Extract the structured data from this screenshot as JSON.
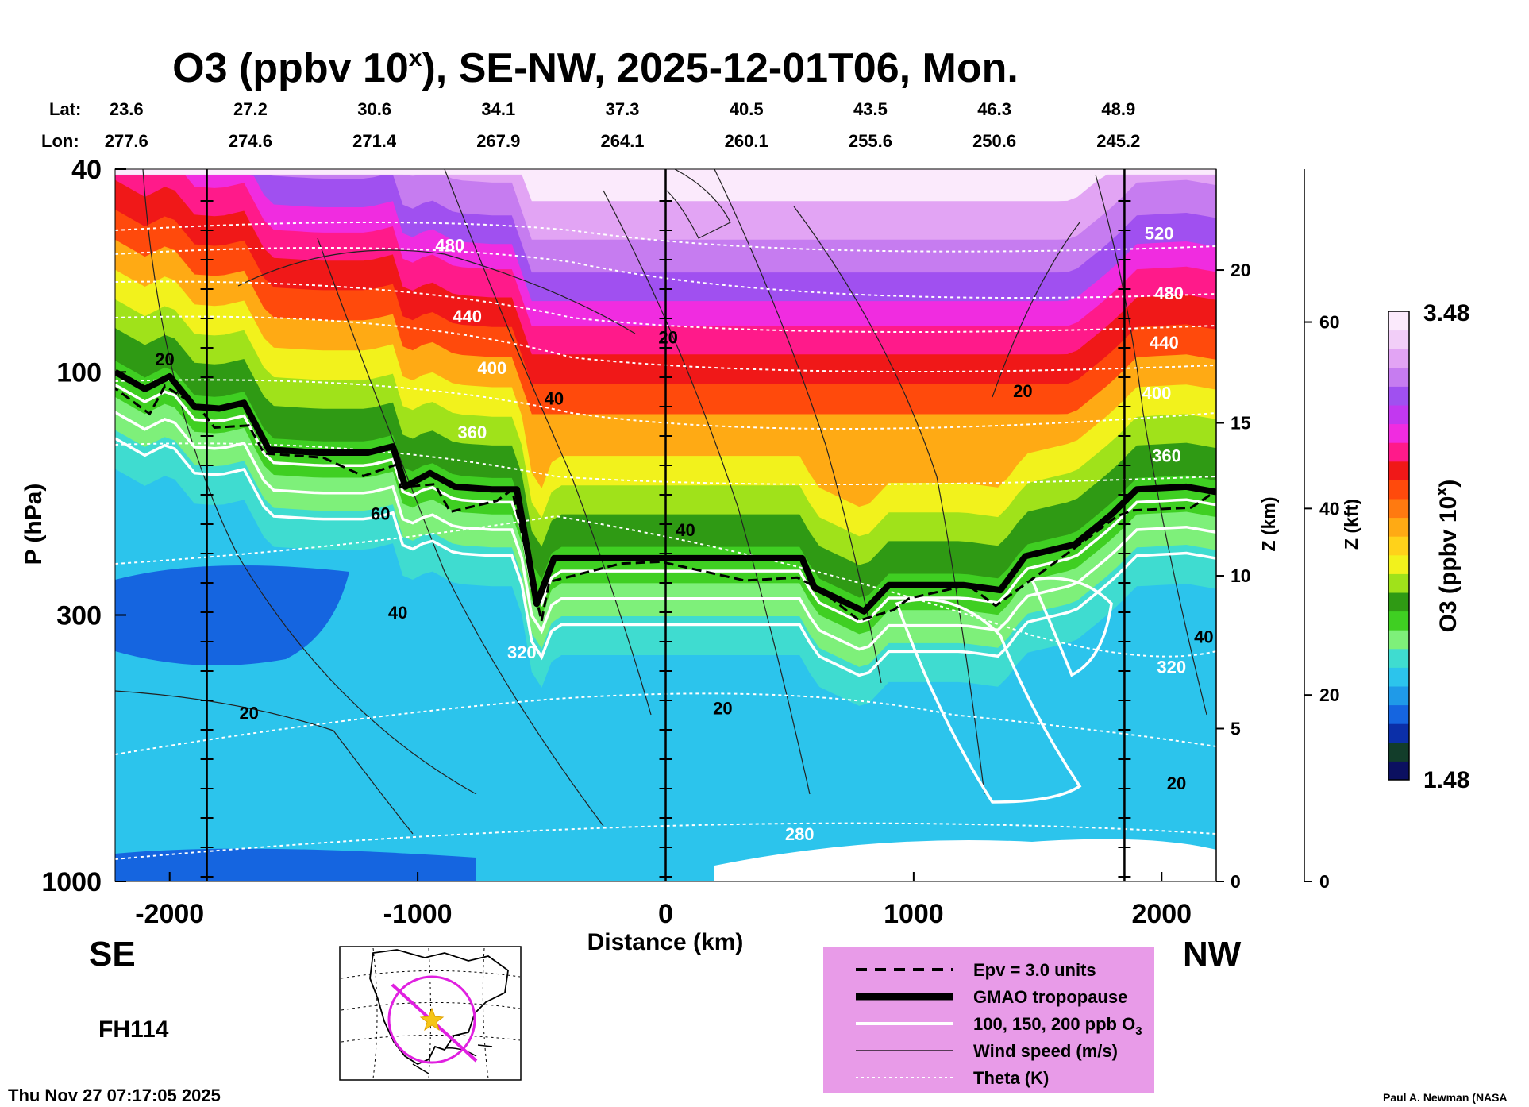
{
  "chart_data": {
    "type": "cross-section",
    "title_main": "O3 (ppbv 10",
    "title_sup": "x",
    "title_rest": "), SE-NW, 2025-12-01T06, Mon.",
    "lat_label": "Lat:",
    "lon_label": "Lon:",
    "stations": [
      {
        "distance_km": -2200,
        "lat": "23.6",
        "lon": "277.6"
      },
      {
        "distance_km": -1700,
        "lat": "27.2",
        "lon": "274.6"
      },
      {
        "distance_km": -1200,
        "lat": "30.6",
        "lon": "271.4"
      },
      {
        "distance_km": -700,
        "lat": "34.1",
        "lon": "267.9"
      },
      {
        "distance_km": -200,
        "lat": "37.3",
        "lon": "264.1"
      },
      {
        "distance_km": 300,
        "lat": "40.5",
        "lon": "260.1"
      },
      {
        "distance_km": 800,
        "lat": "43.5",
        "lon": "255.6"
      },
      {
        "distance_km": 1300,
        "lat": "46.3",
        "lon": "250.6"
      },
      {
        "distance_km": 1800,
        "lat": "48.9",
        "lon": "245.2"
      }
    ],
    "xlabel": "Distance (km)",
    "xlim": [
      -2220,
      2220
    ],
    "xticks": [
      -2000,
      -1000,
      0,
      1000,
      2000
    ],
    "xtick_labels": [
      "-2000",
      "-1000",
      "0",
      "1000",
      "2000"
    ],
    "ylabel": "P (hPa)",
    "ylim_hpa": [
      1000,
      40
    ],
    "yticks": [
      {
        "value": 40,
        "label": "40"
      },
      {
        "value": 100,
        "label": "100"
      },
      {
        "value": 300,
        "label": "300"
      },
      {
        "value": 1000,
        "label": "1000"
      }
    ],
    "z_km_label": "Z (km)",
    "z_km_ticks": [
      {
        "value": 0,
        "label": "0"
      },
      {
        "value": 5,
        "label": "5"
      },
      {
        "value": 10,
        "label": "10"
      },
      {
        "value": 15,
        "label": "15"
      },
      {
        "value": 20,
        "label": "20"
      }
    ],
    "z_kft_label": "Z (kft)",
    "z_kft_ticks": [
      {
        "value": 0,
        "label": "0"
      },
      {
        "value": 20,
        "label": "20"
      },
      {
        "value": 40,
        "label": "40"
      },
      {
        "value": 60,
        "label": "60"
      }
    ],
    "vertical_lines_km": [
      -1850,
      0,
      1850
    ],
    "colorbar": {
      "label_main": "O3 (ppbv 10",
      "label_sup": "x",
      "label_end": ")",
      "min": 1.48,
      "max": 3.48,
      "min_label": "1.48",
      "max_label": "3.48",
      "colors": [
        "#0b1060",
        "#123d2a",
        "#0b2fa8",
        "#1565e0",
        "#1f9ae8",
        "#2cc4ec",
        "#3fdcd0",
        "#7ef07a",
        "#3fcf22",
        "#2f9a14",
        "#a0e21a",
        "#f2f21c",
        "#ffd21a",
        "#ffaa14",
        "#ff7a10",
        "#ff4a0c",
        "#f01818",
        "#ff1a8a",
        "#f02ce0",
        "#c238f0",
        "#a050f0",
        "#c67cf0",
        "#e2a4f4",
        "#f2cef8",
        "#fbeafc"
      ]
    },
    "fill_bands": {
      "description": "log10 ozone shaded field",
      "levels": [
        1.6,
        1.9,
        2.05,
        2.2,
        2.35,
        2.5,
        2.7,
        2.9,
        3.1,
        3.3
      ]
    },
    "tropopause_hpa": [
      {
        "x": -2220,
        "p": 100
      },
      {
        "x": -2100,
        "p": 108
      },
      {
        "x": -2000,
        "p": 102
      },
      {
        "x": -1900,
        "p": 117
      },
      {
        "x": -1800,
        "p": 118
      },
      {
        "x": -1700,
        "p": 115
      },
      {
        "x": -1600,
        "p": 142
      },
      {
        "x": -1400,
        "p": 144
      },
      {
        "x": -1200,
        "p": 144
      },
      {
        "x": -1100,
        "p": 140
      },
      {
        "x": -1050,
        "p": 168
      },
      {
        "x": -950,
        "p": 158
      },
      {
        "x": -850,
        "p": 168
      },
      {
        "x": -700,
        "p": 170
      },
      {
        "x": -600,
        "p": 170
      },
      {
        "x": -520,
        "p": 285
      },
      {
        "x": -450,
        "p": 232
      },
      {
        "x": -200,
        "p": 232
      },
      {
        "x": 0,
        "p": 232
      },
      {
        "x": 300,
        "p": 232
      },
      {
        "x": 550,
        "p": 232
      },
      {
        "x": 600,
        "p": 265
      },
      {
        "x": 800,
        "p": 295
      },
      {
        "x": 900,
        "p": 262
      },
      {
        "x": 1000,
        "p": 262
      },
      {
        "x": 1200,
        "p": 262
      },
      {
        "x": 1350,
        "p": 268
      },
      {
        "x": 1450,
        "p": 230
      },
      {
        "x": 1650,
        "p": 218
      },
      {
        "x": 1800,
        "p": 190
      },
      {
        "x": 1900,
        "p": 170
      },
      {
        "x": 2100,
        "p": 168
      },
      {
        "x": 2220,
        "p": 172
      }
    ],
    "theta_K": [
      {
        "label": "280",
        "x": 540,
        "p": 830
      },
      {
        "label": "320",
        "x": -580,
        "p": 365
      },
      {
        "label": "320",
        "x": 2040,
        "p": 390
      },
      {
        "label": "360",
        "x": -780,
        "p": 135
      },
      {
        "label": "360",
        "x": 2020,
        "p": 150
      },
      {
        "label": "400",
        "x": -700,
        "p": 101
      },
      {
        "label": "400",
        "x": 1980,
        "p": 113
      },
      {
        "label": "440",
        "x": -800,
        "p": 80
      },
      {
        "label": "440",
        "x": 2010,
        "p": 90
      },
      {
        "label": "480",
        "x": -870,
        "p": 58
      },
      {
        "label": "480",
        "x": 2030,
        "p": 72
      },
      {
        "label": "520",
        "x": 1990,
        "p": 55
      }
    ],
    "wind_speed_labels": [
      {
        "label": "20",
        "x": -2020,
        "p": 97
      },
      {
        "label": "60",
        "x": -1150,
        "p": 195
      },
      {
        "label": "40",
        "x": -1080,
        "p": 305
      },
      {
        "label": "20",
        "x": -1680,
        "p": 480
      },
      {
        "label": "40",
        "x": -450,
        "p": 116
      },
      {
        "label": "20",
        "x": 10,
        "p": 88
      },
      {
        "label": "40",
        "x": 80,
        "p": 210
      },
      {
        "label": "20",
        "x": 230,
        "p": 470
      },
      {
        "label": "20",
        "x": 1440,
        "p": 112
      },
      {
        "label": "40",
        "x": 2170,
        "p": 340
      },
      {
        "label": "20",
        "x": 2060,
        "p": 660
      }
    ],
    "side_labels": {
      "left": "SE",
      "right": "NW"
    },
    "forecast_hour": "FH114",
    "timestamp": "Thu Nov 27 07:17:05 2025",
    "credit": "Paul A. Newman (NASA",
    "legend": [
      {
        "text": "Epv = 3.0 units",
        "style": "dashed-black"
      },
      {
        "text": "GMAO tropopause",
        "style": "thick-black"
      },
      {
        "text": "100, 150, 200 ppb O",
        "sub": "3",
        "style": "white"
      },
      {
        "text": "Wind speed (m/s)",
        "style": "thin-black"
      },
      {
        "text": "Theta (K)",
        "style": "dotted-white"
      }
    ],
    "legend_bg": "#e89be8",
    "map_inset": {
      "track_color": "#e020e0",
      "marker_color": "#f5c518"
    }
  }
}
